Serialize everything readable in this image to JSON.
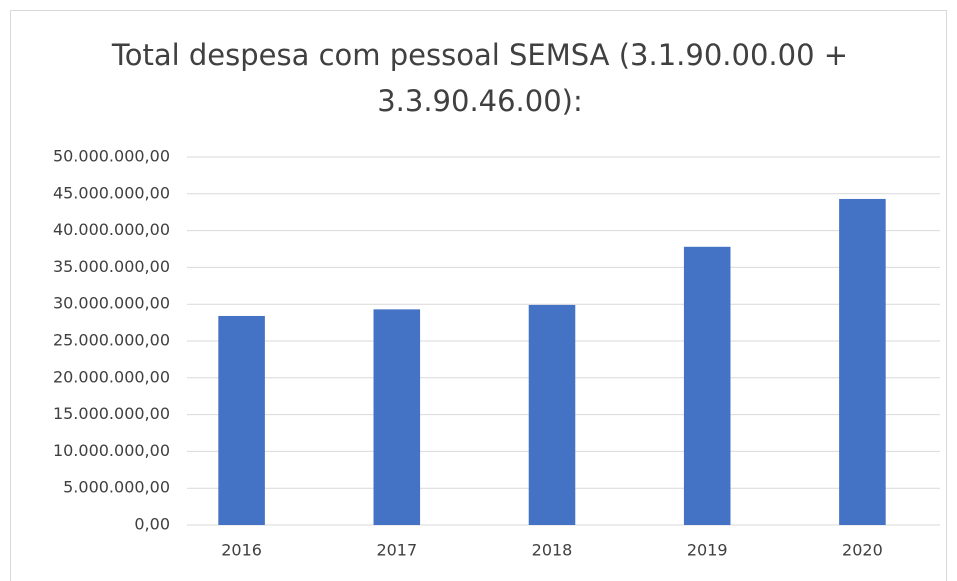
{
  "chart_data": {
    "type": "bar",
    "title": "Total despesa com pessoal SEMSA (3.1.90.00.00 + 3.3.90.46.00):",
    "categories": [
      "2016",
      "2017",
      "2018",
      "2019",
      "2020"
    ],
    "values": [
      28400000,
      29300000,
      29900000,
      37800000,
      44300000
    ],
    "color": "#4472c4",
    "ylim": [
      0,
      50000000
    ],
    "yticks": [
      {
        "value": 0,
        "label": "0,00"
      },
      {
        "value": 5000000,
        "label": "5.000.000,00"
      },
      {
        "value": 10000000,
        "label": "10.000.000,00"
      },
      {
        "value": 15000000,
        "label": "15.000.000,00"
      },
      {
        "value": 20000000,
        "label": "20.000.000,00"
      },
      {
        "value": 25000000,
        "label": "25.000.000,00"
      },
      {
        "value": 30000000,
        "label": "30.000.000,00"
      },
      {
        "value": 35000000,
        "label": "35.000.000,00"
      },
      {
        "value": 40000000,
        "label": "40.000.000,00"
      },
      {
        "value": 45000000,
        "label": "45.000.000,00"
      },
      {
        "value": 50000000,
        "label": "50.000.000,00"
      }
    ],
    "grid": true
  }
}
